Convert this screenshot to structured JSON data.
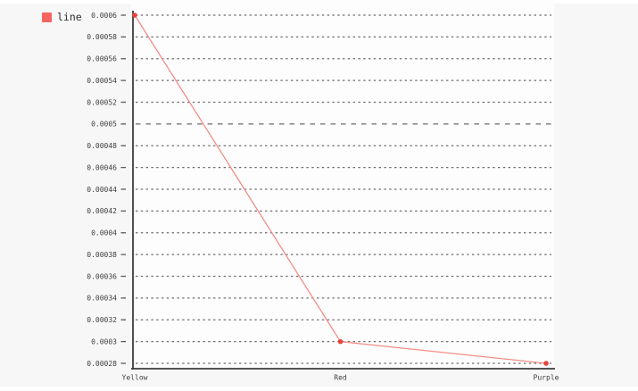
{
  "page": {
    "background": "#ffffff",
    "panel_background": "#f7f7f8"
  },
  "legend": {
    "label": "line",
    "swatch_color": "#f4655f",
    "position": "top-left"
  },
  "chart_data": {
    "type": "line",
    "title": "",
    "xlabel": "",
    "ylabel": "",
    "categories": [
      "Yellow",
      "Red",
      "Purple"
    ],
    "series": [
      {
        "name": "line",
        "values": [
          0.0006,
          0.0003,
          0.00028
        ]
      }
    ],
    "ylim": [
      0.00028,
      0.0006
    ],
    "ytick_step": 2e-05,
    "ytick_labels": [
      "0.0006",
      "0.00058",
      "0.00056",
      "0.00054",
      "0.00052",
      "0.0005",
      "0.00048",
      "0.00046",
      "0.00044",
      "0.00042",
      "0.0004",
      "0.00038",
      "0.00036",
      "0.00034",
      "0.00032",
      "0.0003",
      "0.00028"
    ],
    "emphasized_ytick": "0.0005",
    "grid": true,
    "gridline_style": "dashed",
    "legend_position": "top-left",
    "colors": {
      "line": "#f28e86",
      "marker": "#e6443b",
      "axis": "#3b3b3b",
      "grid": "#595959",
      "text": "#3d3d3d",
      "plot_background": "#fdfdfe"
    }
  }
}
